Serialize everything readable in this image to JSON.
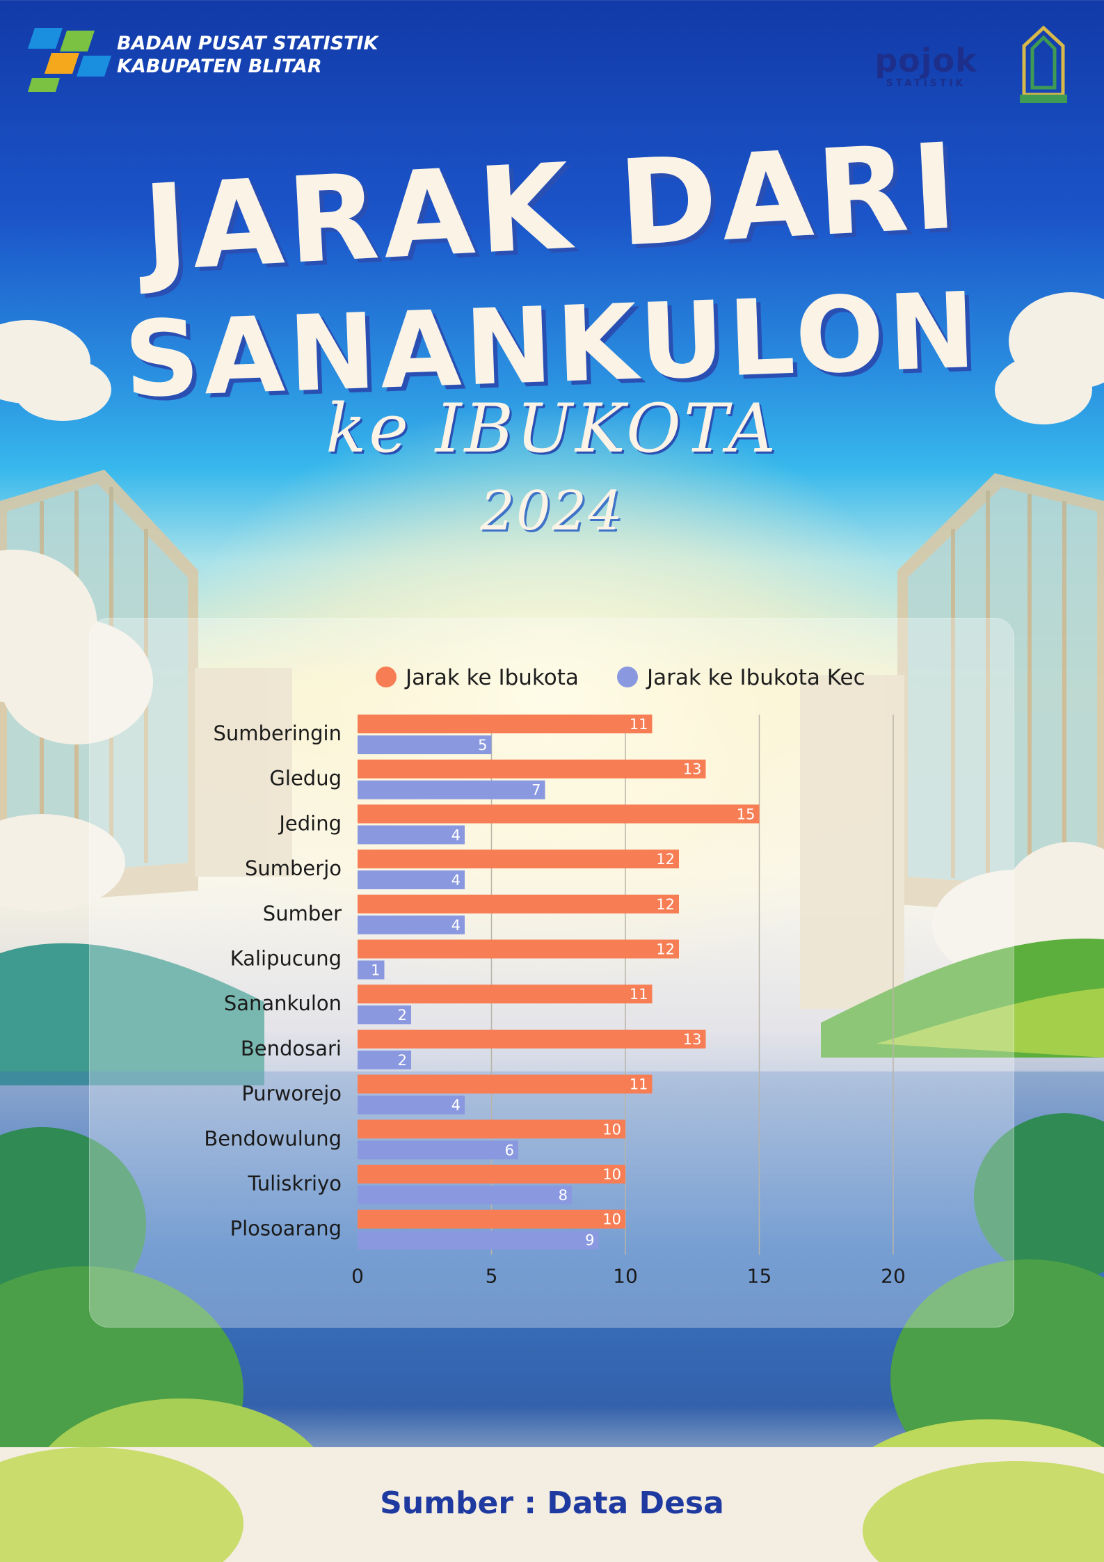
{
  "header": {
    "agency_line1": "BADAN PUSAT STATISTIK",
    "agency_line2": "KABUPATEN BLITAR",
    "pojok_word": "pojok",
    "pojok_sub": "STATISTIK"
  },
  "title": {
    "line1": "JARAK DARI",
    "line2": "SANANKULON",
    "line3": "ke IBUKOTA",
    "year": "2024"
  },
  "colors": {
    "series1": "#f77e54",
    "series2": "#8a98e0",
    "accent": "#1e3aa0"
  },
  "chart_data": {
    "type": "bar",
    "orientation": "horizontal",
    "categories": [
      "Sumberingin",
      "Gledug",
      "Jeding",
      "Sumberjo",
      "Sumber",
      "Kalipucung",
      "Sanankulon",
      "Bendosari",
      "Purworejo",
      "Bendowulung",
      "Tuliskriyo",
      "Plosoarang"
    ],
    "series": [
      {
        "name": "Jarak ke Ibukota",
        "values": [
          11,
          13,
          15,
          12,
          12,
          12,
          11,
          13,
          11,
          10,
          10,
          10
        ]
      },
      {
        "name": "Jarak ke Ibukota Kec",
        "values": [
          5,
          7,
          4,
          4,
          4,
          1,
          2,
          2,
          4,
          6,
          8,
          9
        ]
      }
    ],
    "xlim": [
      0,
      20
    ],
    "xticks": [
      0,
      5,
      10,
      15,
      20
    ],
    "legend": "top",
    "grid": true
  },
  "footer": {
    "source": "Sumber : Data Desa"
  }
}
